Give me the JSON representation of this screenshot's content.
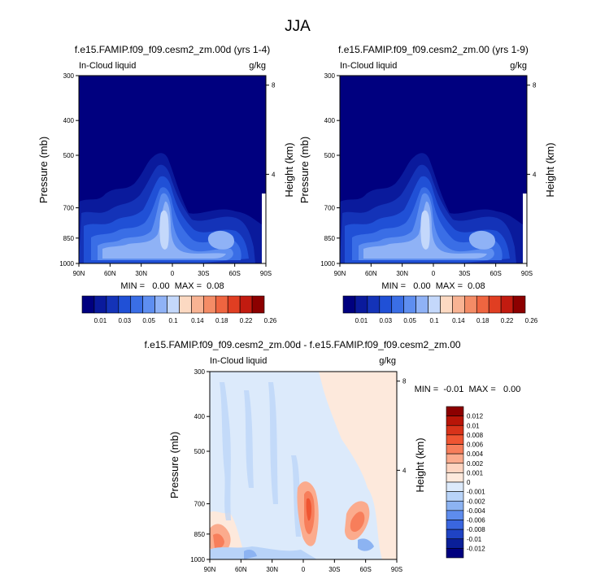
{
  "figure": {
    "title": "JJA"
  },
  "chart_data": [
    {
      "type": "heatmap",
      "title": "f.e15.FAMIP.f09_f09.cesm2_zm.00d (yrs 1-4)",
      "left_label": "In-Cloud liquid",
      "right_label": "g/kg",
      "ylabel": "Pressure (mb)",
      "y2label": "Height (km)",
      "x_ticks": [
        "90N",
        "60N",
        "30N",
        "0",
        "30S",
        "60S",
        "90S"
      ],
      "y_ticks": [
        "300",
        "400",
        "500",
        "700",
        "850",
        "1000"
      ],
      "y2_ticks": [
        "8",
        "4"
      ],
      "stats": "MIN =   0.00  MAX =  0.08",
      "min": 0.0,
      "max": 0.08,
      "colorbar_labels": [
        "0.01",
        "0.03",
        "0.05",
        "0.1",
        "0.14",
        "0.18",
        "0.22",
        "0.26"
      ]
    },
    {
      "type": "heatmap",
      "title": "f.e15.FAMIP.f09_f09.cesm2_zm.00 (yrs 1-9)",
      "left_label": "In-Cloud liquid",
      "right_label": "g/kg",
      "ylabel": "Pressure (mb)",
      "y2label": "Height (km)",
      "x_ticks": [
        "90N",
        "60N",
        "30N",
        "0",
        "30S",
        "60S",
        "90S"
      ],
      "y_ticks": [
        "300",
        "400",
        "500",
        "700",
        "850",
        "1000"
      ],
      "y2_ticks": [
        "8",
        "4"
      ],
      "stats": "MIN =   0.00  MAX =  0.08",
      "min": 0.0,
      "max": 0.08,
      "colorbar_labels": [
        "0.01",
        "0.03",
        "0.05",
        "0.1",
        "0.14",
        "0.18",
        "0.22",
        "0.26"
      ]
    },
    {
      "type": "heatmap",
      "title": "f.e15.FAMIP.f09_f09.cesm2_zm.00d - f.e15.FAMIP.f09_f09.cesm2_zm.00",
      "left_label": "In-Cloud liquid",
      "right_label": "g/kg",
      "ylabel": "Pressure (mb)",
      "y2label": "Height (km)",
      "x_ticks": [
        "90N",
        "60N",
        "30N",
        "0",
        "30S",
        "60S",
        "90S"
      ],
      "y_ticks": [
        "300",
        "400",
        "500",
        "700",
        "850",
        "1000"
      ],
      "y2_ticks": [
        "8",
        "4"
      ],
      "stats": "MIN =  -0.01  MAX =   0.00",
      "min": -0.01,
      "max": 0.0,
      "colorbar_labels": [
        "0.012",
        "0.01",
        "0.008",
        "0.006",
        "0.004",
        "0.002",
        "0.001",
        "0",
        "-0.001",
        "-0.002",
        "-0.004",
        "-0.006",
        "-0.008",
        "-0.01",
        "-0.012"
      ]
    }
  ],
  "colors": {
    "abs_scale": [
      "#00007f",
      "#0a1a9c",
      "#1433b8",
      "#2050d6",
      "#3a6ee6",
      "#5e8ef0",
      "#8fb2f6",
      "#c4d8fb",
      "#fcd9c2",
      "#f8b393",
      "#f48c66",
      "#ef6540",
      "#e03e22",
      "#c21b10",
      "#8c0000"
    ],
    "diff_scale": [
      "#8c0000",
      "#b81508",
      "#d8331a",
      "#ef5532",
      "#f77e5b",
      "#fbab8d",
      "#fdd4c0",
      "#fde9dc",
      "#dceafb",
      "#b8d3f8",
      "#8cb3f2",
      "#5e8ced",
      "#3a66df",
      "#1f43c4",
      "#0a1f99",
      "#00007f"
    ]
  }
}
